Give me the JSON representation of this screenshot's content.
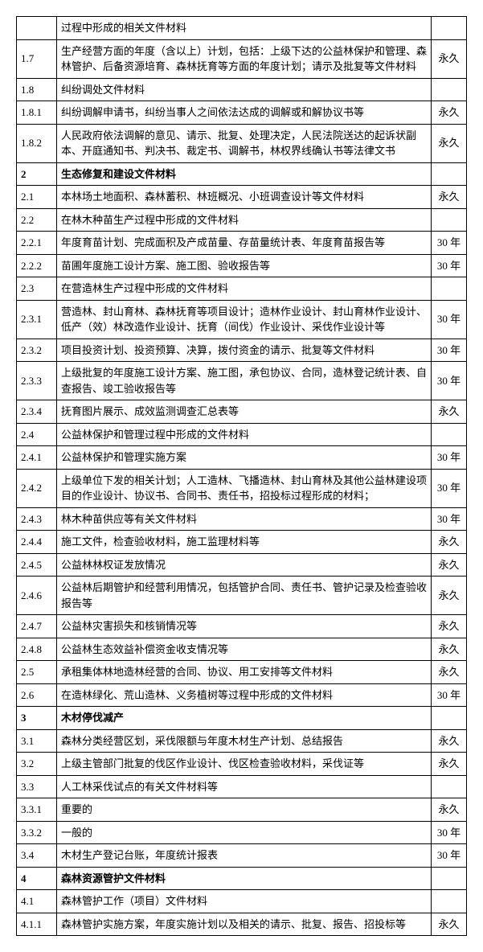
{
  "rows": [
    {
      "num": "",
      "desc": "过程中形成的相关文件材料",
      "period": ""
    },
    {
      "num": "1.7",
      "desc": "生产经营方面的年度（含以上）计划，包括：上级下达的公益林保护和管理、森林管护、后备资源培育、森林抚育等方面的年度计划；请示及批复等文件材料",
      "period": "永久"
    },
    {
      "num": "1.8",
      "desc": "纠纷调处文件材料",
      "period": ""
    },
    {
      "num": "1.8.1",
      "desc": "纠纷调解申请书，纠纷当事人之间依法达成的调解或和解协议书等",
      "period": "永久"
    },
    {
      "num": "1.8.2",
      "desc": "人民政府依法调解的意见、请示、批复、处理决定，人民法院送达的起诉状副本、开庭通知书、判决书、裁定书、调解书，林权界线确认书等法律文书",
      "period": "永久"
    },
    {
      "num": "2",
      "desc": "生态修复和建设文件材料",
      "period": "",
      "bold": true
    },
    {
      "num": "2.1",
      "desc": "本林场土地面积、森林蓄积、林班概况、小班调查设计等文件材料",
      "period": "永久"
    },
    {
      "num": "2.2",
      "desc": "在林木种苗生产过程中形成的文件材料",
      "period": ""
    },
    {
      "num": "2.2.1",
      "desc": "年度育苗计划、完成面积及产成苗量、存苗量统计表、年度育苗报告等",
      "period": "30 年"
    },
    {
      "num": "2.2.2",
      "desc": "苗圃年度施工设计方案、施工图、验收报告等",
      "period": "30 年"
    },
    {
      "num": "2.3",
      "desc": "在营造林生产过程中形成的文件材料",
      "period": ""
    },
    {
      "num": "2.3.1",
      "desc": "营造林、封山育林、森林抚育等项目设计；造林作业设计、封山育林作业设计、低产（效）林改造作业设计、抚育（间伐）作业设计、采伐作业设计等",
      "period": "30 年"
    },
    {
      "num": "2.3.2",
      "desc": "项目投资计划、投资预算、决算，拨付资金的请示、批复等文件材料",
      "period": "30 年"
    },
    {
      "num": "2.3.3",
      "desc": "上级批复的年度施工设计方案、施工图，承包协议、合同，造林登记统计表、自查报告、竣工验收报告等",
      "period": "30 年"
    },
    {
      "num": "2.3.4",
      "desc": "抚育图片展示、成效监测调查汇总表等",
      "period": "永久"
    },
    {
      "num": "2.4",
      "desc": "公益林保护和管理过程中形成的文件材料",
      "period": ""
    },
    {
      "num": "2.4.1",
      "desc": "公益林保护和管理实施方案",
      "period": "30 年"
    },
    {
      "num": "2.4.2",
      "desc": "上级单位下发的相关计划；人工造林、飞播造林、封山育林及其他公益林建设项目的作业设计、协议书、合同书、责任书，招投标过程形成的材料；",
      "period": "30 年"
    },
    {
      "num": "2.4.3",
      "desc": "林木种苗供应等有关文件材料",
      "period": "30 年"
    },
    {
      "num": "2.4.4",
      "desc": "施工文件，检查验收材料，施工监理材料等",
      "period": "永久"
    },
    {
      "num": "2.4.5",
      "desc": "公益林林权证发放情况",
      "period": "永久"
    },
    {
      "num": "2.4.6",
      "desc": "公益林后期管护和经营利用情况，包括管护合同、责任书、管护记录及检查验收报告等",
      "period": "永久"
    },
    {
      "num": "2.4.7",
      "desc": "公益林灾害损失和核销情况等",
      "period": "永久"
    },
    {
      "num": "2.4.8",
      "desc": "公益林生态效益补偿资金收支情况等",
      "period": "永久"
    },
    {
      "num": "2.5",
      "desc": "承租集体林地造林经营的合同、协议、用工安排等文件材料",
      "period": "永久"
    },
    {
      "num": "2.6",
      "desc": "在造林绿化、荒山造林、义务植树等过程中形成的文件材料",
      "period": "30 年"
    },
    {
      "num": "3",
      "desc": "木材停伐减产",
      "period": "",
      "bold": true
    },
    {
      "num": "3.1",
      "desc": "森林分类经营区划，采伐限额与年度木材生产计划、总结报告",
      "period": "永久"
    },
    {
      "num": "3.2",
      "desc": "上级主管部门批复的伐区作业设计、伐区检查验收材料，采伐证等",
      "period": "永久"
    },
    {
      "num": "3.3",
      "desc": "人工林采伐试点的有关文件材料等",
      "period": ""
    },
    {
      "num": "3.3.1",
      "desc": "重要的",
      "period": "永久"
    },
    {
      "num": "3.3.2",
      "desc": "一般的",
      "period": "30 年"
    },
    {
      "num": "3.4",
      "desc": "木材生产登记台账，年度统计报表",
      "period": "30 年"
    },
    {
      "num": "4",
      "desc": "森林资源管护文件材料",
      "period": "",
      "bold": true
    },
    {
      "num": "4.1",
      "desc": "森林管护工作（项目）文件材料",
      "period": ""
    },
    {
      "num": "4.1.1",
      "desc": "森林管护实施方案，年度实施计划以及相关的请示、批复、报告、招投标等",
      "period": "永久"
    }
  ]
}
